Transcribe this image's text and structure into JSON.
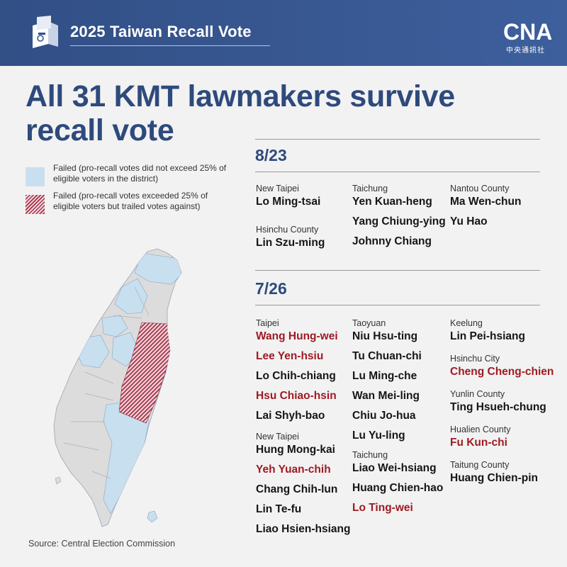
{
  "header": {
    "title": "2025 Taiwan Recall Vote",
    "logo_text": "CNA",
    "logo_sub": "中央通訊社"
  },
  "headline": {
    "line1": "All 31 KMT lawmakers survive",
    "line2": "recall vote"
  },
  "legend": [
    {
      "text": "Failed (pro-recall votes did not exceed 25% of eligible voters in the district)",
      "color": "#c8dff0"
    },
    {
      "text": "Failed (pro-recall votes exceeded 25% of eligible voters but trailed votes against)",
      "color": "#a53048"
    }
  ],
  "source": "Source: Central Election Commission",
  "colors": {
    "header": "#324f86",
    "title": "#2e4a7d",
    "highlight": "#9e1b23",
    "map_gray": "#dcdcdc",
    "map_blue": "#c8dff0"
  },
  "rounds": [
    {
      "date": "8/23",
      "columns": [
        [
          {
            "region": "New Taipei",
            "names": [
              {
                "n": "Lo Ming-tsai",
                "h": false
              }
            ]
          },
          {
            "region": "Hsinchu County",
            "names": [
              {
                "n": "Lin Szu-ming",
                "h": false
              }
            ]
          }
        ],
        [
          {
            "region": "Taichung",
            "names": [
              {
                "n": "Yen Kuan-heng",
                "h": false
              },
              {
                "n": "Yang Chiung-ying",
                "h": false
              },
              {
                "n": "Johnny Chiang",
                "h": false
              }
            ]
          }
        ],
        [
          {
            "region": "Nantou County",
            "names": [
              {
                "n": "Ma Wen-chun",
                "h": false
              },
              {
                "n": "Yu Hao",
                "h": false
              }
            ]
          }
        ]
      ]
    },
    {
      "date": "7/26",
      "columns": [
        [
          {
            "region": "Taipei",
            "names": [
              {
                "n": "Wang Hung-wei",
                "h": true
              },
              {
                "n": "Lee Yen-hsiu",
                "h": true
              },
              {
                "n": "Lo Chih-chiang",
                "h": false
              },
              {
                "n": "Hsu Chiao-hsin",
                "h": true
              },
              {
                "n": "Lai Shyh-bao",
                "h": false
              }
            ]
          },
          {
            "region": "New Taipei",
            "names": [
              {
                "n": "Hung Mong-kai",
                "h": false
              },
              {
                "n": "Yeh Yuan-chih",
                "h": true
              },
              {
                "n": "Chang Chih-lun",
                "h": false
              },
              {
                "n": "Lin Te-fu",
                "h": false
              },
              {
                "n": "Liao Hsien-hsiang",
                "h": false
              }
            ]
          }
        ],
        [
          {
            "region": "Taoyuan",
            "names": [
              {
                "n": "Niu Hsu-ting",
                "h": false
              },
              {
                "n": "Tu Chuan-chi",
                "h": false
              },
              {
                "n": "Lu Ming-che",
                "h": false
              },
              {
                "n": "Wan Mei-ling",
                "h": false
              },
              {
                "n": "Chiu Jo-hua",
                "h": false
              },
              {
                "n": "Lu Yu-ling",
                "h": false
              }
            ]
          },
          {
            "region": "Taichung",
            "names": [
              {
                "n": "Liao Wei-hsiang",
                "h": false
              },
              {
                "n": "Huang Chien-hao",
                "h": false
              },
              {
                "n": "Lo Ting-wei",
                "h": true
              }
            ]
          }
        ],
        [
          {
            "region": "Keelung",
            "names": [
              {
                "n": "Lin Pei-hsiang",
                "h": false
              }
            ]
          },
          {
            "region": "Hsinchu City",
            "names": [
              {
                "n": "Cheng Cheng-chien",
                "h": true
              }
            ]
          },
          {
            "region": "Yunlin County",
            "names": [
              {
                "n": "Ting Hsueh-chung",
                "h": false
              }
            ]
          },
          {
            "region": "Hualien County",
            "names": [
              {
                "n": "Fu Kun-chi",
                "h": true
              }
            ]
          },
          {
            "region": "Taitung County",
            "names": [
              {
                "n": "Huang Chien-pin",
                "h": false
              }
            ]
          }
        ]
      ]
    }
  ]
}
